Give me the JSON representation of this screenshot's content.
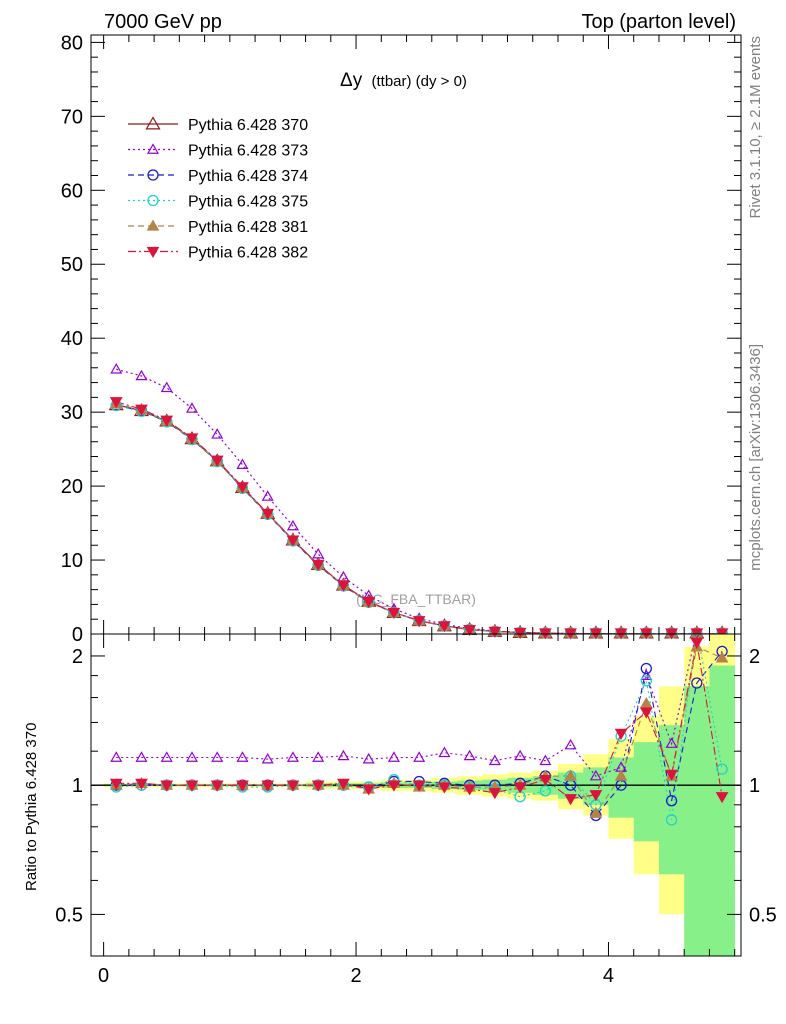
{
  "header": {
    "left": "7000 GeV pp",
    "right": "Top (parton level)"
  },
  "side_labels": {
    "rivet": "Rivet 3.1.10, ≥ 2.1M events",
    "mcplots": "mcplots.cern.ch [arXiv:1306.3436]"
  },
  "chart_data": [
    {
      "panel": "main",
      "type": "line",
      "title": "Δy",
      "title_suffix": "(ttbar) (dy > 0)",
      "watermark": "(MC_FBA_TTBAR)",
      "xlim": [
        -0.1,
        5.05
      ],
      "ylim": [
        0,
        81
      ],
      "yticks": [
        0,
        10,
        20,
        30,
        40,
        50,
        60,
        70,
        80
      ],
      "legend_position": "top-left",
      "x": [
        0.1,
        0.3,
        0.5,
        0.7,
        0.9,
        1.1,
        1.3,
        1.5,
        1.7,
        1.9,
        2.1,
        2.3,
        2.5,
        2.7,
        2.9,
        3.1,
        3.3,
        3.5,
        3.7,
        3.9,
        4.1,
        4.3,
        4.5,
        4.7,
        4.9
      ],
      "series": [
        {
          "name": "Pythia 6.428 370",
          "color": "#8b1a1a",
          "marker": "triangle-open",
          "dash": "solid",
          "values": [
            31.0,
            30.2,
            28.8,
            26.4,
            23.4,
            19.8,
            16.3,
            12.7,
            9.4,
            6.6,
            4.4,
            2.9,
            1.8,
            1.1,
            0.6,
            0.35,
            0.2,
            0.1,
            0.05,
            0.03,
            0.02,
            0.01,
            0.005,
            0.003,
            0.002
          ]
        },
        {
          "name": "Pythia 6.428 373",
          "color": "#9400d3",
          "marker": "triangle-open-small",
          "dash": "dotted",
          "values": [
            35.8,
            34.9,
            33.3,
            30.5,
            27.0,
            22.9,
            18.6,
            14.6,
            10.8,
            7.7,
            5.2,
            3.4,
            2.1,
            1.3,
            0.75,
            0.4,
            0.22,
            0.12,
            0.06,
            0.03,
            0.02,
            0.01,
            0.006,
            0.004,
            0.002
          ]
        },
        {
          "name": "Pythia 6.428 374",
          "color": "#1a1acd",
          "marker": "circle-open",
          "dash": "dashed",
          "values": [
            30.9,
            30.2,
            28.7,
            26.3,
            23.4,
            19.7,
            16.2,
            12.6,
            9.3,
            6.5,
            4.3,
            2.9,
            1.8,
            1.1,
            0.6,
            0.35,
            0.2,
            0.1,
            0.05,
            0.03,
            0.02,
            0.01,
            0.005,
            0.003,
            0.002
          ]
        },
        {
          "name": "Pythia 6.428 375",
          "color": "#20d2c8",
          "marker": "circle-open",
          "dash": "dotted",
          "values": [
            30.9,
            30.1,
            28.7,
            26.3,
            23.3,
            19.7,
            16.2,
            12.6,
            9.3,
            6.5,
            4.3,
            2.9,
            1.8,
            1.1,
            0.6,
            0.35,
            0.2,
            0.1,
            0.05,
            0.03,
            0.02,
            0.01,
            0.005,
            0.003,
            0.002
          ]
        },
        {
          "name": "Pythia 6.428 381",
          "color": "#b5824a",
          "marker": "triangle-filled",
          "dash": "dashed",
          "values": [
            31.1,
            30.3,
            28.8,
            26.4,
            23.4,
            19.8,
            16.3,
            12.7,
            9.4,
            6.6,
            4.3,
            2.9,
            1.8,
            1.1,
            0.6,
            0.35,
            0.2,
            0.1,
            0.05,
            0.03,
            0.02,
            0.01,
            0.005,
            0.003,
            0.002
          ]
        },
        {
          "name": "Pythia 6.428 382",
          "color": "#dc143c",
          "marker": "triangle-down-filled",
          "dash": "dashdot",
          "values": [
            31.4,
            30.4,
            28.9,
            26.5,
            23.5,
            19.9,
            16.3,
            12.7,
            9.4,
            6.6,
            4.4,
            2.9,
            1.8,
            1.1,
            0.6,
            0.35,
            0.2,
            0.1,
            0.05,
            0.03,
            0.02,
            0.01,
            0.005,
            0.003,
            0.002
          ]
        }
      ]
    },
    {
      "panel": "ratio",
      "type": "line",
      "ylabel": "Ratio to Pythia 6.428 370",
      "xlim": [
        -0.1,
        5.05
      ],
      "ylim": [
        0.4,
        2.25
      ],
      "yscale": "log",
      "xticks": [
        0,
        2,
        4
      ],
      "ytick_labels": [
        "0.5",
        "1",
        "2"
      ],
      "ytick_values": [
        0.5,
        1,
        2
      ],
      "reference_line": 1,
      "bands": {
        "x_edges": [
          0.0,
          0.2,
          0.4,
          0.6,
          0.8,
          1.0,
          1.2,
          1.4,
          1.6,
          1.8,
          2.0,
          2.2,
          2.4,
          2.6,
          2.8,
          3.0,
          3.2,
          3.4,
          3.6,
          3.8,
          4.0,
          4.2,
          4.4,
          4.6,
          4.8,
          5.0
        ],
        "yellow_low": [
          0.99,
          0.99,
          0.99,
          0.99,
          0.99,
          0.99,
          0.99,
          0.99,
          0.98,
          0.98,
          0.98,
          0.97,
          0.97,
          0.96,
          0.95,
          0.94,
          0.93,
          0.92,
          0.88,
          0.85,
          0.75,
          0.62,
          0.5,
          0.38,
          0.36
        ],
        "yellow_high": [
          1.01,
          1.01,
          1.01,
          1.01,
          1.01,
          1.01,
          1.01,
          1.01,
          1.02,
          1.02,
          1.02,
          1.03,
          1.03,
          1.04,
          1.05,
          1.06,
          1.07,
          1.08,
          1.12,
          1.18,
          1.28,
          1.45,
          1.7,
          2.1,
          2.3
        ],
        "green_low": [
          0.995,
          0.995,
          0.995,
          0.995,
          0.995,
          0.995,
          0.995,
          0.995,
          0.99,
          0.99,
          0.99,
          0.985,
          0.985,
          0.98,
          0.975,
          0.97,
          0.96,
          0.95,
          0.93,
          0.9,
          0.84,
          0.74,
          0.62,
          0.37,
          0.36
        ],
        "green_high": [
          1.005,
          1.005,
          1.005,
          1.005,
          1.005,
          1.005,
          1.005,
          1.005,
          1.01,
          1.01,
          1.01,
          1.015,
          1.015,
          1.02,
          1.025,
          1.03,
          1.04,
          1.05,
          1.07,
          1.1,
          1.16,
          1.26,
          1.38,
          1.7,
          1.9
        ]
      },
      "x": [
        0.1,
        0.3,
        0.5,
        0.7,
        0.9,
        1.1,
        1.3,
        1.5,
        1.7,
        1.9,
        2.1,
        2.3,
        2.5,
        2.7,
        2.9,
        3.1,
        3.3,
        3.5,
        3.7,
        3.9,
        4.1,
        4.3,
        4.5,
        4.7,
        4.9
      ],
      "series": [
        {
          "name": "Pythia 6.428 373",
          "color": "#9400d3",
          "marker": "triangle-open-small",
          "dash": "dotted",
          "values": [
            1.16,
            1.16,
            1.16,
            1.16,
            1.16,
            1.16,
            1.15,
            1.16,
            1.16,
            1.17,
            1.15,
            1.16,
            1.16,
            1.19,
            1.17,
            1.14,
            1.17,
            1.14,
            1.24,
            1.05,
            1.1,
            1.8,
            1.25,
            2.3,
            2.3
          ]
        },
        {
          "name": "Pythia 6.428 374",
          "color": "#1a1acd",
          "marker": "circle-open",
          "dash": "dashed",
          "values": [
            1.0,
            1.0,
            1.0,
            1.0,
            1.0,
            1.0,
            1.0,
            1.0,
            1.0,
            1.0,
            0.99,
            1.02,
            1.02,
            1.01,
            1.0,
            1.0,
            1.01,
            1.05,
            1.0,
            0.85,
            1.0,
            1.87,
            0.92,
            1.73,
            2.05
          ]
        },
        {
          "name": "Pythia 6.428 375",
          "color": "#20d2c8",
          "marker": "circle-open",
          "dash": "dotted",
          "values": [
            0.99,
            1.0,
            1.0,
            1.0,
            1.0,
            0.99,
            0.99,
            1.0,
            1.0,
            1.0,
            0.99,
            1.03,
            1.0,
            1.0,
            0.99,
            0.98,
            0.94,
            0.97,
            1.05,
            0.9,
            1.3,
            1.75,
            0.83,
            2.3,
            1.09
          ]
        },
        {
          "name": "Pythia 6.428 381",
          "color": "#b5824a",
          "marker": "triangle-filled",
          "dash": "dashed",
          "values": [
            1.0,
            1.01,
            1.0,
            1.0,
            1.0,
            1.0,
            1.0,
            1.0,
            1.0,
            1.0,
            0.98,
            1.01,
            0.99,
            1.0,
            0.99,
            0.99,
            1.0,
            1.05,
            1.05,
            0.86,
            1.05,
            1.55,
            1.05,
            2.1,
            1.98
          ]
        },
        {
          "name": "Pythia 6.428 382",
          "color": "#dc143c",
          "marker": "triangle-down-filled",
          "dash": "dashdot",
          "values": [
            1.01,
            1.01,
            1.0,
            1.0,
            1.0,
            1.0,
            1.0,
            1.0,
            1.0,
            1.01,
            0.98,
            1.0,
            1.0,
            0.99,
            0.98,
            0.96,
            0.99,
            1.03,
            0.93,
            0.95,
            1.32,
            1.48,
            1.06,
            2.15,
            0.94
          ]
        }
      ]
    }
  ]
}
